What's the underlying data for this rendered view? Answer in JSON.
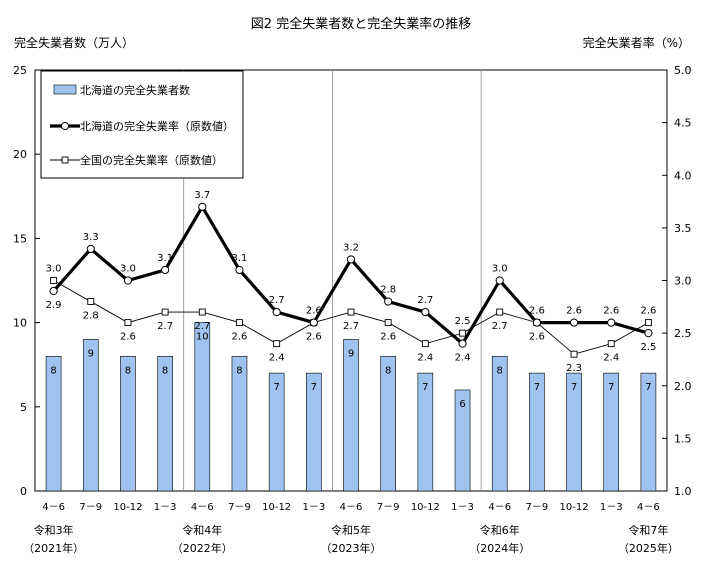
{
  "chart_data": {
    "type": "bar",
    "title": "図2 完全失業者数と完全失業率の推移",
    "ylabel_left": "完全失業者数（万人）",
    "ylabel_right": "完全失業者率（%）",
    "ylim_left": [
      0,
      25
    ],
    "yticks_left": [
      "0",
      "5",
      "10",
      "15",
      "20",
      "25"
    ],
    "ylim_right": [
      1.0,
      5.0
    ],
    "yticks_right": [
      "1.0",
      "1.5",
      "2.0",
      "2.5",
      "3.0",
      "3.5",
      "4.0",
      "4.5",
      "5.0"
    ],
    "categories": [
      "4－6",
      "7－9",
      "10-12",
      "1－3",
      "4－6",
      "7－9",
      "10-12",
      "1－3",
      "4－6",
      "7－9",
      "10-12",
      "1－3",
      "4－6",
      "7－9",
      "10-12",
      "1－3",
      "4－6"
    ],
    "year_labels": [
      {
        "index": 0,
        "line1": "令和3年",
        "line2": "（2021年）"
      },
      {
        "index": 4,
        "line1": "令和4年",
        "line2": "（2022年）"
      },
      {
        "index": 8,
        "line1": "令和5年",
        "line2": "（2023年）"
      },
      {
        "index": 12,
        "line1": "令和6年",
        "line2": "（2024年）"
      },
      {
        "index": 16,
        "line1": "令和7年",
        "line2": "（2025年）"
      }
    ],
    "year_separators": [
      4,
      8,
      12
    ],
    "series": [
      {
        "name": "北海道の完全失業者数",
        "kind": "bar",
        "axis": "left",
        "color": "#9fc3ef",
        "values": [
          8,
          9,
          8,
          8,
          10,
          8,
          7,
          7,
          9,
          8,
          7,
          6,
          8,
          7,
          7,
          7,
          7
        ],
        "labels": [
          "8",
          "9",
          "8",
          "8",
          "10",
          "8",
          "7",
          "7",
          "9",
          "8",
          "7",
          "6",
          "8",
          "7",
          "7",
          "7",
          "7"
        ]
      },
      {
        "name": "北海道の完全失業率（原数値）",
        "kind": "line",
        "axis": "right",
        "color": "#000000",
        "values": [
          2.9,
          3.3,
          3.0,
          3.1,
          3.7,
          3.1,
          2.7,
          2.6,
          3.2,
          2.8,
          2.7,
          2.4,
          3.0,
          2.6,
          2.6,
          2.6,
          2.5
        ],
        "labels": [
          "2.9",
          "3.3",
          "3.0",
          "3.1",
          "3.7",
          "3.1",
          "2.7",
          "2.6",
          "3.2",
          "2.8",
          "2.7",
          "2.4",
          "3.0",
          "2.6",
          "2.6",
          "2.6",
          "2.5"
        ]
      },
      {
        "name": "全国の完全失業率（原数値）",
        "kind": "line",
        "axis": "right",
        "color": "#000000",
        "values": [
          3.0,
          2.8,
          2.6,
          2.7,
          2.7,
          2.6,
          2.4,
          2.6,
          2.7,
          2.6,
          2.4,
          2.5,
          2.7,
          2.6,
          2.3,
          2.4,
          2.6
        ],
        "labels": [
          "3.0",
          "2.8",
          "2.6",
          "2.7",
          "2.7",
          "2.6",
          "2.4",
          "2.6",
          "2.7",
          "2.6",
          "2.4",
          "2.5",
          "2.7",
          "2.6",
          "2.3",
          "2.4",
          "2.6"
        ]
      }
    ],
    "legend_position": "top-left",
    "grid": false
  }
}
